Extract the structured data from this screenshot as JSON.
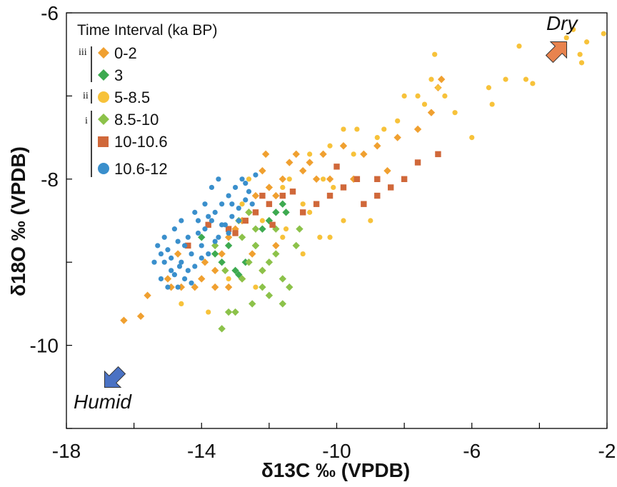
{
  "chart_data": {
    "type": "scatter",
    "title": "",
    "xlabel": "δ13C ‰ (VPDB)",
    "ylabel": "δ18O ‰ (VPDB)",
    "xlim": [
      -18,
      -2
    ],
    "ylim": [
      -11,
      -6
    ],
    "x_ticks": [
      -18,
      -14,
      -10,
      -6,
      -2
    ],
    "x_tick_labels": [
      "-18",
      "-14",
      "-10",
      "-6",
      "-2"
    ],
    "y_ticks": [
      -6,
      -8,
      -10
    ],
    "y_tick_labels": [
      "-6",
      "-8",
      "-10"
    ],
    "grid": false,
    "legend": {
      "title": "Time Interval (ka BP)",
      "placement": "top-left",
      "groups": [
        {
          "label": "iii",
          "entries": [
            "0-2",
            "3"
          ]
        },
        {
          "label": "ii",
          "entries": [
            "5-8.5"
          ]
        },
        {
          "label": "i",
          "entries": [
            "8.5-10",
            "10-10.6",
            "10.6-12"
          ]
        }
      ]
    },
    "annotations": [
      {
        "text": "Dry",
        "color": "#E8834E",
        "direction": "upper-right"
      },
      {
        "text": "Humid",
        "color": "#4A72C4",
        "direction": "lower-left"
      }
    ],
    "series": [
      {
        "name": "0-2",
        "marker": "diamond",
        "color": "#F0A030",
        "points": [
          [
            -16.3,
            -9.7
          ],
          [
            -15.8,
            -9.65
          ],
          [
            -15.6,
            -9.4
          ],
          [
            -15.0,
            -9.2
          ],
          [
            -14.9,
            -9.3
          ],
          [
            -14.6,
            -9.3
          ],
          [
            -14.2,
            -9.3
          ],
          [
            -14.0,
            -9.2
          ],
          [
            -13.9,
            -9.0
          ],
          [
            -13.6,
            -9.1
          ],
          [
            -13.4,
            -8.9
          ],
          [
            -13.2,
            -8.7
          ],
          [
            -13.0,
            -8.6
          ],
          [
            -12.8,
            -8.5
          ],
          [
            -12.6,
            -8.4
          ],
          [
            -12.4,
            -8.2
          ],
          [
            -12.2,
            -7.9
          ],
          [
            -12.1,
            -7.7
          ],
          [
            -12.0,
            -8.1
          ],
          [
            -11.8,
            -8.2
          ],
          [
            -11.6,
            -8.0
          ],
          [
            -11.4,
            -7.8
          ],
          [
            -11.2,
            -7.7
          ],
          [
            -11.0,
            -7.9
          ],
          [
            -10.8,
            -7.8
          ],
          [
            -10.6,
            -8.0
          ],
          [
            -10.4,
            -7.7
          ],
          [
            -10.2,
            -8.0
          ],
          [
            -9.8,
            -7.6
          ],
          [
            -9.5,
            -8.0
          ],
          [
            -9.2,
            -7.7
          ],
          [
            -8.8,
            -7.6
          ],
          [
            -8.5,
            -7.9
          ],
          [
            -8.2,
            -7.5
          ],
          [
            -7.6,
            -7.4
          ],
          [
            -7.2,
            -7.2
          ],
          [
            -7.0,
            -6.9
          ],
          [
            -6.9,
            -6.8
          ],
          [
            -12.5,
            -8.9
          ],
          [
            -12.2,
            -9.1
          ],
          [
            -11.8,
            -8.8
          ],
          [
            -13.6,
            -9.3
          ],
          [
            -14.7,
            -8.9
          ],
          [
            -13.2,
            -9.3
          ],
          [
            -12.8,
            -9.2
          ]
        ]
      },
      {
        "name": "3",
        "marker": "diamond",
        "color": "#3DAA50",
        "points": [
          [
            -14.0,
            -8.7
          ],
          [
            -13.6,
            -8.9
          ],
          [
            -13.4,
            -9.0
          ],
          [
            -13.0,
            -9.1
          ],
          [
            -12.9,
            -9.15
          ],
          [
            -12.7,
            -9.0
          ],
          [
            -12.4,
            -8.8
          ],
          [
            -12.2,
            -8.6
          ],
          [
            -12.0,
            -8.5
          ],
          [
            -11.8,
            -8.4
          ],
          [
            -11.6,
            -8.3
          ],
          [
            -11.5,
            -8.4
          ],
          [
            -13.2,
            -8.8
          ]
        ]
      },
      {
        "name": "5-8.5",
        "marker": "circle",
        "color": "#F7C23A",
        "points": [
          [
            -14.6,
            -9.5
          ],
          [
            -13.8,
            -9.6
          ],
          [
            -13.2,
            -9.2
          ],
          [
            -12.4,
            -9.3
          ],
          [
            -12.0,
            -9.0
          ],
          [
            -11.6,
            -8.7
          ],
          [
            -11.0,
            -8.9
          ],
          [
            -11.5,
            -8.6
          ],
          [
            -11.0,
            -8.3
          ],
          [
            -10.8,
            -8.4
          ],
          [
            -10.5,
            -8.7
          ],
          [
            -10.2,
            -8.7
          ],
          [
            -9.8,
            -8.5
          ],
          [
            -10.1,
            -8.1
          ],
          [
            -10.4,
            -8.0
          ],
          [
            -11.4,
            -8.0
          ],
          [
            -11.6,
            -8.1
          ],
          [
            -10.8,
            -7.7
          ],
          [
            -10.2,
            -7.6
          ],
          [
            -9.8,
            -7.4
          ],
          [
            -9.4,
            -7.4
          ],
          [
            -9.5,
            -7.7
          ],
          [
            -9.0,
            -8.5
          ],
          [
            -8.8,
            -7.5
          ],
          [
            -8.6,
            -7.4
          ],
          [
            -8.2,
            -7.3
          ],
          [
            -8.0,
            -7.0
          ],
          [
            -7.6,
            -7.0
          ],
          [
            -7.4,
            -7.1
          ],
          [
            -7.2,
            -6.8
          ],
          [
            -7.0,
            -6.9
          ],
          [
            -6.8,
            -7.0
          ],
          [
            -6.5,
            -7.2
          ],
          [
            -6.0,
            -7.5
          ],
          [
            -5.5,
            -6.9
          ],
          [
            -5.4,
            -7.1
          ],
          [
            -5.0,
            -6.8
          ],
          [
            -4.6,
            -6.4
          ],
          [
            -4.4,
            -6.8
          ],
          [
            -4.2,
            -6.85
          ],
          [
            -3.2,
            -6.3
          ],
          [
            -3.0,
            -6.2
          ],
          [
            -2.8,
            -6.5
          ],
          [
            -2.75,
            -6.6
          ],
          [
            -2.1,
            -6.25
          ],
          [
            -2.6,
            -6.35
          ],
          [
            -7.1,
            -6.5
          ],
          [
            -12.6,
            -8.0
          ],
          [
            -12.2,
            -8.5
          ],
          [
            -12.8,
            -8.3
          ]
        ]
      },
      {
        "name": "8.5-10",
        "marker": "diamond",
        "color": "#8CC24A",
        "points": [
          [
            -13.4,
            -9.8
          ],
          [
            -13.2,
            -9.6
          ],
          [
            -13.0,
            -9.6
          ],
          [
            -12.8,
            -9.2
          ],
          [
            -12.6,
            -9.0
          ],
          [
            -12.4,
            -8.8
          ],
          [
            -12.2,
            -9.1
          ],
          [
            -12.0,
            -9.0
          ],
          [
            -11.8,
            -8.9
          ],
          [
            -11.6,
            -9.2
          ],
          [
            -11.4,
            -9.3
          ],
          [
            -11.2,
            -8.8
          ],
          [
            -11.1,
            -8.6
          ],
          [
            -13.6,
            -8.8
          ],
          [
            -12.6,
            -8.4
          ],
          [
            -12.9,
            -8.5
          ],
          [
            -12.4,
            -8.6
          ],
          [
            -11.8,
            -8.6
          ],
          [
            -12.2,
            -9.3
          ],
          [
            -12.0,
            -9.4
          ],
          [
            -13.3,
            -9.1
          ],
          [
            -12.8,
            -8.7
          ],
          [
            -11.6,
            -9.5
          ],
          [
            -12.5,
            -9.5
          ]
        ]
      },
      {
        "name": "10-10.6",
        "marker": "square",
        "color": "#D0683A",
        "points": [
          [
            -14.4,
            -8.8
          ],
          [
            -13.8,
            -8.55
          ],
          [
            -13.2,
            -8.6
          ],
          [
            -12.7,
            -8.5
          ],
          [
            -12.4,
            -8.4
          ],
          [
            -12.0,
            -8.3
          ],
          [
            -11.6,
            -8.2
          ],
          [
            -11.3,
            -8.15
          ],
          [
            -11.0,
            -8.4
          ],
          [
            -10.6,
            -8.3
          ],
          [
            -10.2,
            -8.2
          ],
          [
            -10.0,
            -7.85
          ],
          [
            -9.8,
            -8.1
          ],
          [
            -9.4,
            -8.0
          ],
          [
            -9.2,
            -8.3
          ],
          [
            -8.8,
            -8.2
          ],
          [
            -8.4,
            -8.1
          ],
          [
            -8.0,
            -8.0
          ],
          [
            -7.6,
            -7.8
          ],
          [
            -7.0,
            -7.7
          ],
          [
            -12.2,
            -8.2
          ],
          [
            -13.0,
            -8.65
          ],
          [
            -11.9,
            -8.55
          ],
          [
            -8.8,
            -8.0
          ]
        ]
      },
      {
        "name": "10.6-12",
        "marker": "circle",
        "color": "#3A8FCC",
        "points": [
          [
            -15.3,
            -8.8
          ],
          [
            -15.2,
            -8.9
          ],
          [
            -15.1,
            -9.0
          ],
          [
            -15.0,
            -8.85
          ],
          [
            -14.9,
            -9.1
          ],
          [
            -14.8,
            -9.15
          ],
          [
            -14.7,
            -8.75
          ],
          [
            -14.6,
            -9.0
          ],
          [
            -14.5,
            -9.2
          ],
          [
            -14.4,
            -8.7
          ],
          [
            -14.3,
            -8.9
          ],
          [
            -14.2,
            -9.05
          ],
          [
            -14.1,
            -8.65
          ],
          [
            -14.0,
            -8.8
          ],
          [
            -13.9,
            -8.6
          ],
          [
            -13.8,
            -8.9
          ],
          [
            -13.7,
            -8.5
          ],
          [
            -13.6,
            -8.4
          ],
          [
            -13.5,
            -8.7
          ],
          [
            -13.4,
            -8.3
          ],
          [
            -13.3,
            -8.55
          ],
          [
            -13.2,
            -8.2
          ],
          [
            -13.1,
            -8.45
          ],
          [
            -13.0,
            -8.1
          ],
          [
            -12.9,
            -8.35
          ],
          [
            -12.8,
            -8.0
          ],
          [
            -12.7,
            -8.25
          ],
          [
            -12.6,
            -8.15
          ],
          [
            -12.5,
            -8.3
          ],
          [
            -15.2,
            -9.2
          ],
          [
            -14.8,
            -8.6
          ],
          [
            -14.6,
            -8.5
          ],
          [
            -14.2,
            -8.4
          ],
          [
            -13.9,
            -8.3
          ],
          [
            -13.7,
            -8.1
          ],
          [
            -13.5,
            -8.0
          ],
          [
            -15.4,
            -9.0
          ],
          [
            -14.9,
            -8.95
          ],
          [
            -14.4,
            -9.1
          ],
          [
            -14.0,
            -8.95
          ],
          [
            -13.6,
            -8.75
          ],
          [
            -13.2,
            -8.65
          ],
          [
            -12.9,
            -8.5
          ],
          [
            -14.7,
            -9.3
          ],
          [
            -14.3,
            -9.25
          ],
          [
            -15.0,
            -9.3
          ],
          [
            -14.5,
            -8.8
          ],
          [
            -14.1,
            -8.5
          ],
          [
            -13.8,
            -8.45
          ],
          [
            -12.7,
            -8.05
          ],
          [
            -12.4,
            -7.95
          ],
          [
            -15.1,
            -8.7
          ],
          [
            -14.65,
            -9.05
          ],
          [
            -13.4,
            -8.55
          ],
          [
            -13.1,
            -8.3
          ]
        ]
      }
    ]
  }
}
